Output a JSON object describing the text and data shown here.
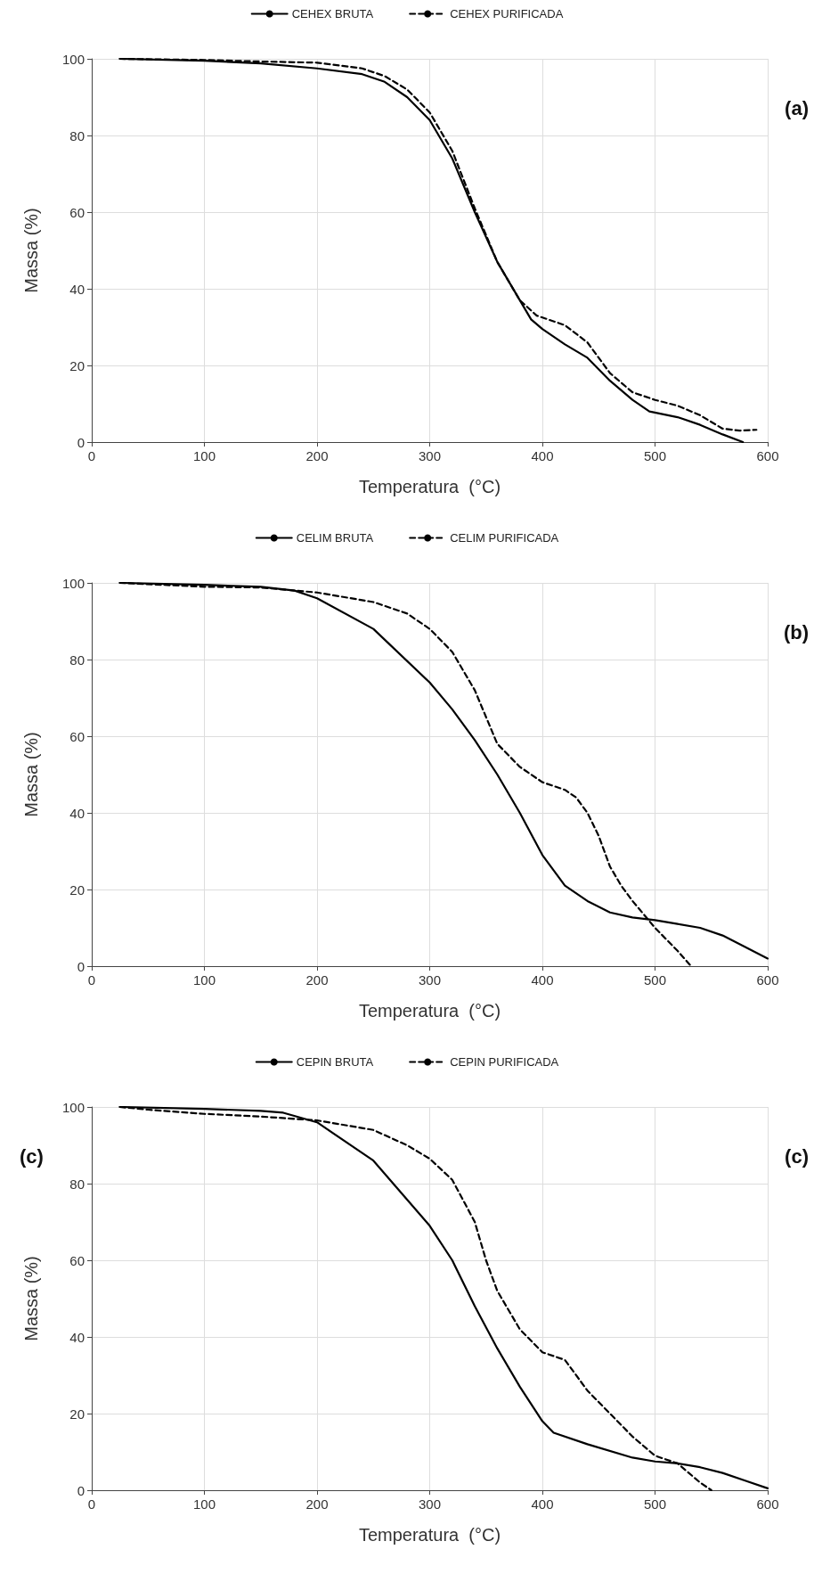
{
  "chart_data": [
    {
      "type": "line",
      "xlabel": "Temperatura  (°C)",
      "ylabel": "Massa (%)",
      "xlim": [
        0,
        600
      ],
      "xticks": [
        0,
        100,
        200,
        300,
        400,
        500,
        600
      ],
      "ylim": [
        0,
        100
      ],
      "yticks": [
        0,
        20,
        40,
        60,
        80,
        100
      ],
      "grid": true,
      "legend": "top",
      "marker": "none",
      "annotations": [
        "(a)"
      ],
      "series": [
        {
          "name": "CEHEX BRUTA",
          "color": "#000000",
          "line_style": "solid",
          "x": [
            25,
            100,
            150,
            200,
            240,
            260,
            280,
            300,
            320,
            340,
            360,
            380,
            390,
            400,
            420,
            440,
            460,
            480,
            495,
            520,
            540,
            560,
            578
          ],
          "values": [
            100,
            99.5,
            98.8,
            97.5,
            96,
            94,
            90,
            84,
            74,
            60,
            47,
            37,
            32,
            29.5,
            25.5,
            22,
            16,
            11,
            8,
            6.5,
            4.5,
            2,
            0
          ]
        },
        {
          "name": "CEHEX PURIFICADA",
          "color": "#000000",
          "line_style": "dashed",
          "x": [
            25,
            100,
            150,
            200,
            240,
            260,
            280,
            300,
            320,
            340,
            360,
            380,
            395,
            420,
            440,
            460,
            480,
            500,
            520,
            540,
            560,
            575,
            590
          ],
          "values": [
            100,
            99.7,
            99.3,
            99,
            97.5,
            95.5,
            92,
            86,
            76,
            61,
            47,
            37,
            33,
            30.5,
            26,
            18,
            13,
            11,
            9.5,
            7,
            3.5,
            3,
            3.2
          ]
        }
      ]
    },
    {
      "type": "line",
      "xlabel": "Temperatura  (°C)",
      "ylabel": "Massa (%)",
      "xlim": [
        0,
        600
      ],
      "xticks": [
        0,
        100,
        200,
        300,
        400,
        500,
        600
      ],
      "ylim": [
        0,
        100
      ],
      "yticks": [
        0,
        20,
        40,
        60,
        80,
        100
      ],
      "grid": true,
      "legend": "top",
      "marker": "none",
      "annotations": [
        "(b)"
      ],
      "series": [
        {
          "name": "CELIM BRUTA",
          "color": "#000000",
          "line_style": "solid",
          "x": [
            25,
            100,
            150,
            180,
            200,
            250,
            300,
            320,
            340,
            360,
            380,
            400,
            420,
            440,
            460,
            480,
            500,
            520,
            540,
            560,
            580,
            600
          ],
          "values": [
            100,
            99.5,
            99,
            98,
            96,
            88,
            74,
            67,
            59,
            50,
            40,
            29,
            21,
            17,
            14,
            12.7,
            12,
            11,
            10,
            8,
            5,
            2
          ]
        },
        {
          "name": "CELIM PURIFICADA",
          "color": "#000000",
          "line_style": "dashed",
          "x": [
            25,
            100,
            150,
            180,
            200,
            250,
            280,
            300,
            320,
            340,
            350,
            360,
            380,
            400,
            420,
            430,
            440,
            450,
            460,
            470,
            480,
            500,
            520,
            532
          ],
          "values": [
            100,
            99,
            98.8,
            98,
            97.5,
            95,
            92,
            88,
            82,
            72,
            65,
            58,
            52,
            48,
            46,
            44,
            40,
            34,
            26,
            21,
            17,
            10,
            4,
            0
          ]
        }
      ]
    },
    {
      "type": "line",
      "xlabel": "Temperatura  (°C)",
      "ylabel": "Massa (%)",
      "xlim": [
        0,
        600
      ],
      "xticks": [
        0,
        100,
        200,
        300,
        400,
        500,
        600
      ],
      "ylim": [
        0,
        100
      ],
      "yticks": [
        0,
        20,
        40,
        60,
        80,
        100
      ],
      "grid": true,
      "legend": "top",
      "marker": "none",
      "annotations": [
        "(c)",
        "(c)"
      ],
      "series": [
        {
          "name": "CEPIN BRUTA",
          "color": "#000000",
          "line_style": "solid",
          "x": [
            25,
            100,
            150,
            170,
            200,
            250,
            300,
            320,
            340,
            360,
            380,
            400,
            410,
            440,
            480,
            500,
            520,
            540,
            560,
            580,
            600
          ],
          "values": [
            100,
            99.5,
            99,
            98.5,
            96,
            86,
            69,
            60,
            48,
            37,
            27,
            18,
            15,
            12,
            8.5,
            7.5,
            7,
            6,
            4.5,
            2.5,
            0.5
          ]
        },
        {
          "name": "CEPIN PURIFICADA",
          "color": "#000000",
          "line_style": "dashed",
          "x": [
            25,
            50,
            100,
            150,
            200,
            250,
            280,
            300,
            320,
            340,
            350,
            360,
            380,
            400,
            420,
            440,
            460,
            480,
            500,
            520,
            540,
            550
          ],
          "values": [
            100,
            99.3,
            98.2,
            97.5,
            96.5,
            94,
            90,
            86.5,
            81,
            70,
            60,
            52,
            42,
            36,
            34,
            26,
            20,
            14,
            9,
            7,
            2,
            0
          ]
        }
      ]
    }
  ]
}
